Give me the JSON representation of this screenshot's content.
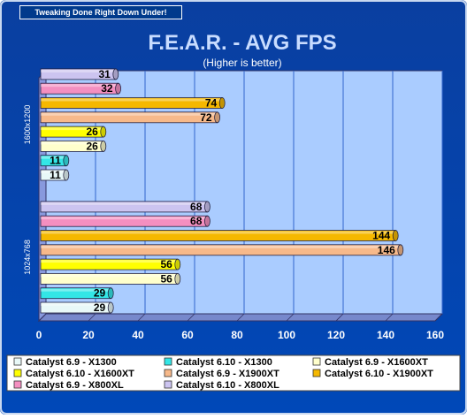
{
  "header": {
    "banner": "Tweaking Done Right Down Under!"
  },
  "chart_data": {
    "type": "bar",
    "orientation": "horizontal",
    "title": "F.E.A.R. - AVG FPS",
    "subtitle": "(Higher is better)",
    "categories": [
      "1600x1200",
      "1024x768"
    ],
    "xlim": [
      0,
      160
    ],
    "xticks": [
      0,
      20,
      40,
      60,
      80,
      100,
      120,
      140,
      160
    ],
    "grid": true,
    "legend_position": "bottom",
    "series": [
      {
        "name": "Catalyst 6.9 - X1300",
        "color": "#e8f8f8",
        "values": [
          11,
          29
        ]
      },
      {
        "name": "Catalyst 6.10 - X1300",
        "color": "#33e6e6",
        "values": [
          11,
          29
        ]
      },
      {
        "name": "Catalyst 6.9 - X1600XT",
        "color": "#ffffcc",
        "values": [
          26,
          56
        ]
      },
      {
        "name": "Catalyst 6.10 - X1600XT",
        "color": "#ffff00",
        "values": [
          26,
          56
        ]
      },
      {
        "name": "Catalyst 6.9 - X1900XT",
        "color": "#f7b98a",
        "values": [
          72,
          146
        ]
      },
      {
        "name": "Catalyst 6.10 - X1900XT",
        "color": "#f5b800",
        "values": [
          74,
          144
        ]
      },
      {
        "name": "Catalyst 6.9 - X800XL",
        "color": "#f48fc0",
        "values": [
          32,
          68
        ]
      },
      {
        "name": "Catalyst 6.10 - X800XL",
        "color": "#ccc4f0",
        "values": [
          31,
          68
        ]
      }
    ]
  }
}
